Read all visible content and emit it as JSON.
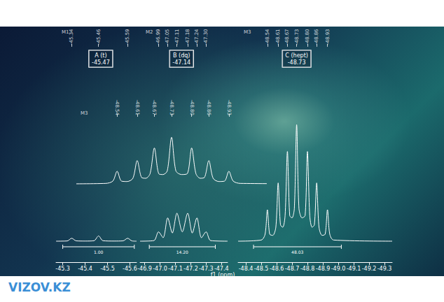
{
  "chart_data": {
    "type": "line",
    "x_label": "f1 (ppm)",
    "color": "#ffffff",
    "grid": false,
    "tick_labels": "x",
    "ylim": [
      -18,
      102
    ],
    "segments": [
      {
        "xlim": [
          -45.27,
          -45.63
        ],
        "xticks": [
          -45.3,
          -45.4,
          -45.5,
          -45.6
        ],
        "x": [
          -45.27,
          -45.32,
          -45.34,
          -45.36,
          -45.4,
          -45.44,
          -45.46,
          -45.48,
          -45.53,
          -45.57,
          -45.59,
          -45.61,
          -45.63
        ],
        "values": [
          0,
          0.2,
          2.5,
          0.3,
          0.1,
          0.4,
          4.5,
          0.4,
          0.1,
          0.3,
          2.5,
          0.2,
          0
        ],
        "integral": {
          "from": -45.3,
          "to": -45.62,
          "value": 1,
          "label": "1.00"
        }
      },
      {
        "xlim": [
          -46.87,
          -47.44
        ],
        "xticks": [
          -46.9,
          {
            "value": -47,
            "label": "-47.0"
          },
          -47.1,
          -47.2,
          -47.3,
          -47.4
        ],
        "x": [
          -46.87,
          -46.96,
          -46.99,
          -47.02,
          -47.05,
          -47.08,
          -47.11,
          -47.145,
          -47.18,
          -47.21,
          -47.24,
          -47.27,
          -47.3,
          -47.33,
          -47.44
        ],
        "values": [
          0,
          0.5,
          8,
          3,
          20,
          7,
          24,
          8,
          24,
          7,
          20,
          3,
          8,
          0.5,
          0
        ],
        "integral": {
          "from": -46.93,
          "to": -47.36,
          "value": 14.2,
          "label": "14.20"
        }
      },
      {
        "xlim": [
          -48.35,
          -49.35
        ],
        "xticks": [
          -48.4,
          -48.5,
          -48.6,
          -48.7,
          -48.8,
          -48.9,
          {
            "value": -49,
            "label": "-49.0"
          },
          -49.1,
          -49.2,
          -49.3
        ],
        "x": [
          -48.35,
          -48.5,
          -48.525,
          -48.54,
          -48.555,
          -48.575,
          -48.595,
          -48.61,
          -48.625,
          -48.64,
          -48.655,
          -48.67,
          -48.685,
          -48.7,
          -48.715,
          -48.73,
          -48.745,
          -48.765,
          -48.785,
          -48.8,
          -48.815,
          -48.83,
          -48.845,
          -48.86,
          -48.875,
          -48.895,
          -48.915,
          -48.93,
          -48.945,
          -48.97,
          -49.35
        ],
        "values": [
          0,
          1,
          6,
          27,
          6,
          5,
          12,
          50,
          14,
          12,
          22,
          77,
          22,
          20,
          28,
          100,
          28,
          20,
          22,
          77,
          22,
          12,
          14,
          50,
          12,
          5,
          6,
          27,
          6,
          1,
          0
        ],
        "integral": {
          "from": -48.45,
          "to": -49.02,
          "value": 48.03
        }
      }
    ],
    "multiplets": [
      {
        "group": "M1",
        "label": "A (t)",
        "shift": -45.47,
        "peaks": [
          -45.34,
          -45.46,
          -45.59
        ]
      },
      {
        "group": "M2",
        "label": "B (dq)",
        "shift": -47.14,
        "peaks": [
          -46.99,
          -47.05,
          -47.11,
          -47.18,
          -47.24,
          {
            "value": -47.3,
            "label": "-47.30"
          }
        ]
      },
      {
        "group": "M3",
        "label": "C (hept)",
        "shift": -48.73,
        "peaks": [
          -48.54,
          -48.61,
          -48.67,
          -48.73,
          {
            "value": -48.8,
            "label": "-48.80"
          },
          -48.86,
          -48.93
        ]
      }
    ],
    "inset": {
      "group": "M3",
      "xlim": [
        -48.4,
        -49.06
      ]
    },
    "watermark": "VIZOV.KZ"
  }
}
